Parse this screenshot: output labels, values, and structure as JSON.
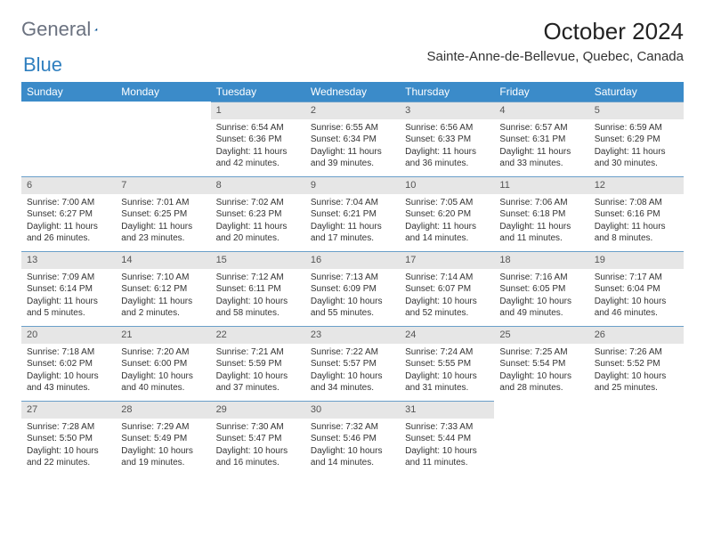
{
  "logo": {
    "text1": "General",
    "text2": "Blue"
  },
  "header": {
    "title": "October 2024",
    "location": "Sainte-Anne-de-Bellevue, Quebec, Canada"
  },
  "calendar": {
    "header_bg": "#3b8bc9",
    "header_text_color": "#ffffff",
    "daynum_bg": "#e6e6e6",
    "row_border_color": "#6a9fc9",
    "days": [
      "Sunday",
      "Monday",
      "Tuesday",
      "Wednesday",
      "Thursday",
      "Friday",
      "Saturday"
    ],
    "weeks": [
      [
        null,
        null,
        {
          "n": "1",
          "sunrise": "Sunrise: 6:54 AM",
          "sunset": "Sunset: 6:36 PM",
          "daylight": "Daylight: 11 hours and 42 minutes."
        },
        {
          "n": "2",
          "sunrise": "Sunrise: 6:55 AM",
          "sunset": "Sunset: 6:34 PM",
          "daylight": "Daylight: 11 hours and 39 minutes."
        },
        {
          "n": "3",
          "sunrise": "Sunrise: 6:56 AM",
          "sunset": "Sunset: 6:33 PM",
          "daylight": "Daylight: 11 hours and 36 minutes."
        },
        {
          "n": "4",
          "sunrise": "Sunrise: 6:57 AM",
          "sunset": "Sunset: 6:31 PM",
          "daylight": "Daylight: 11 hours and 33 minutes."
        },
        {
          "n": "5",
          "sunrise": "Sunrise: 6:59 AM",
          "sunset": "Sunset: 6:29 PM",
          "daylight": "Daylight: 11 hours and 30 minutes."
        }
      ],
      [
        {
          "n": "6",
          "sunrise": "Sunrise: 7:00 AM",
          "sunset": "Sunset: 6:27 PM",
          "daylight": "Daylight: 11 hours and 26 minutes."
        },
        {
          "n": "7",
          "sunrise": "Sunrise: 7:01 AM",
          "sunset": "Sunset: 6:25 PM",
          "daylight": "Daylight: 11 hours and 23 minutes."
        },
        {
          "n": "8",
          "sunrise": "Sunrise: 7:02 AM",
          "sunset": "Sunset: 6:23 PM",
          "daylight": "Daylight: 11 hours and 20 minutes."
        },
        {
          "n": "9",
          "sunrise": "Sunrise: 7:04 AM",
          "sunset": "Sunset: 6:21 PM",
          "daylight": "Daylight: 11 hours and 17 minutes."
        },
        {
          "n": "10",
          "sunrise": "Sunrise: 7:05 AM",
          "sunset": "Sunset: 6:20 PM",
          "daylight": "Daylight: 11 hours and 14 minutes."
        },
        {
          "n": "11",
          "sunrise": "Sunrise: 7:06 AM",
          "sunset": "Sunset: 6:18 PM",
          "daylight": "Daylight: 11 hours and 11 minutes."
        },
        {
          "n": "12",
          "sunrise": "Sunrise: 7:08 AM",
          "sunset": "Sunset: 6:16 PM",
          "daylight": "Daylight: 11 hours and 8 minutes."
        }
      ],
      [
        {
          "n": "13",
          "sunrise": "Sunrise: 7:09 AM",
          "sunset": "Sunset: 6:14 PM",
          "daylight": "Daylight: 11 hours and 5 minutes."
        },
        {
          "n": "14",
          "sunrise": "Sunrise: 7:10 AM",
          "sunset": "Sunset: 6:12 PM",
          "daylight": "Daylight: 11 hours and 2 minutes."
        },
        {
          "n": "15",
          "sunrise": "Sunrise: 7:12 AM",
          "sunset": "Sunset: 6:11 PM",
          "daylight": "Daylight: 10 hours and 58 minutes."
        },
        {
          "n": "16",
          "sunrise": "Sunrise: 7:13 AM",
          "sunset": "Sunset: 6:09 PM",
          "daylight": "Daylight: 10 hours and 55 minutes."
        },
        {
          "n": "17",
          "sunrise": "Sunrise: 7:14 AM",
          "sunset": "Sunset: 6:07 PM",
          "daylight": "Daylight: 10 hours and 52 minutes."
        },
        {
          "n": "18",
          "sunrise": "Sunrise: 7:16 AM",
          "sunset": "Sunset: 6:05 PM",
          "daylight": "Daylight: 10 hours and 49 minutes."
        },
        {
          "n": "19",
          "sunrise": "Sunrise: 7:17 AM",
          "sunset": "Sunset: 6:04 PM",
          "daylight": "Daylight: 10 hours and 46 minutes."
        }
      ],
      [
        {
          "n": "20",
          "sunrise": "Sunrise: 7:18 AM",
          "sunset": "Sunset: 6:02 PM",
          "daylight": "Daylight: 10 hours and 43 minutes."
        },
        {
          "n": "21",
          "sunrise": "Sunrise: 7:20 AM",
          "sunset": "Sunset: 6:00 PM",
          "daylight": "Daylight: 10 hours and 40 minutes."
        },
        {
          "n": "22",
          "sunrise": "Sunrise: 7:21 AM",
          "sunset": "Sunset: 5:59 PM",
          "daylight": "Daylight: 10 hours and 37 minutes."
        },
        {
          "n": "23",
          "sunrise": "Sunrise: 7:22 AM",
          "sunset": "Sunset: 5:57 PM",
          "daylight": "Daylight: 10 hours and 34 minutes."
        },
        {
          "n": "24",
          "sunrise": "Sunrise: 7:24 AM",
          "sunset": "Sunset: 5:55 PM",
          "daylight": "Daylight: 10 hours and 31 minutes."
        },
        {
          "n": "25",
          "sunrise": "Sunrise: 7:25 AM",
          "sunset": "Sunset: 5:54 PM",
          "daylight": "Daylight: 10 hours and 28 minutes."
        },
        {
          "n": "26",
          "sunrise": "Sunrise: 7:26 AM",
          "sunset": "Sunset: 5:52 PM",
          "daylight": "Daylight: 10 hours and 25 minutes."
        }
      ],
      [
        {
          "n": "27",
          "sunrise": "Sunrise: 7:28 AM",
          "sunset": "Sunset: 5:50 PM",
          "daylight": "Daylight: 10 hours and 22 minutes."
        },
        {
          "n": "28",
          "sunrise": "Sunrise: 7:29 AM",
          "sunset": "Sunset: 5:49 PM",
          "daylight": "Daylight: 10 hours and 19 minutes."
        },
        {
          "n": "29",
          "sunrise": "Sunrise: 7:30 AM",
          "sunset": "Sunset: 5:47 PM",
          "daylight": "Daylight: 10 hours and 16 minutes."
        },
        {
          "n": "30",
          "sunrise": "Sunrise: 7:32 AM",
          "sunset": "Sunset: 5:46 PM",
          "daylight": "Daylight: 10 hours and 14 minutes."
        },
        {
          "n": "31",
          "sunrise": "Sunrise: 7:33 AM",
          "sunset": "Sunset: 5:44 PM",
          "daylight": "Daylight: 10 hours and 11 minutes."
        },
        null,
        null
      ]
    ]
  }
}
